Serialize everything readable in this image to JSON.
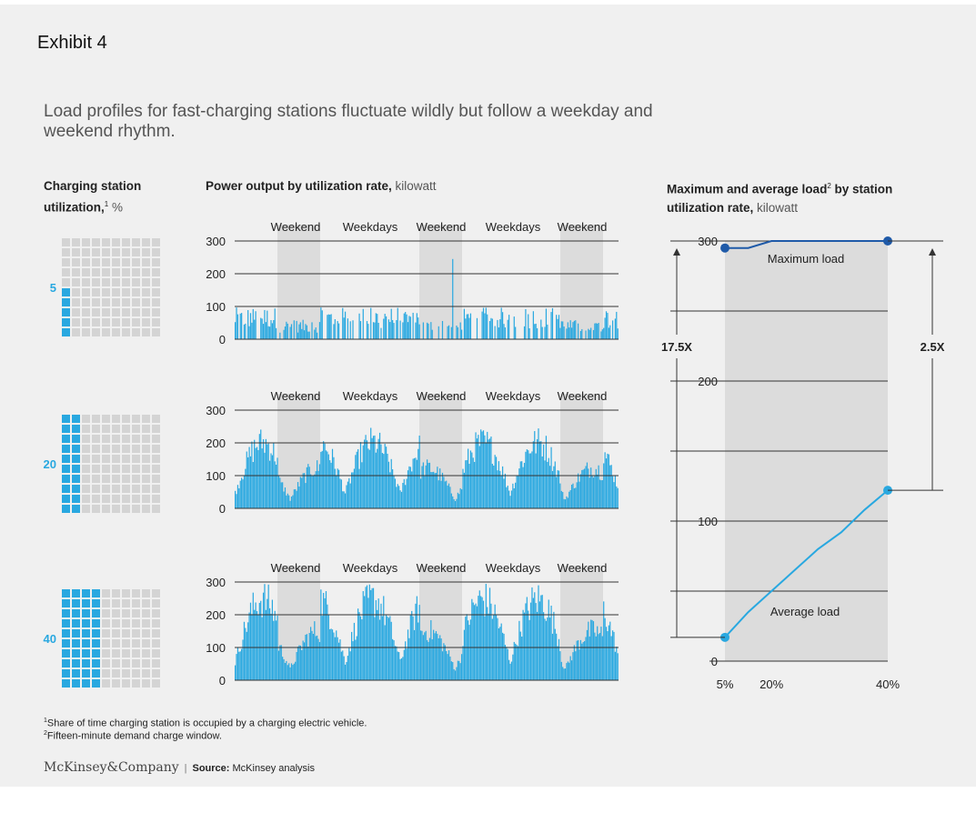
{
  "exhibit_label": "Exhibit 4",
  "title": "Load profiles for fast-charging stations fluctuate wildly but follow a weekday and weekend rhythm.",
  "left_header": {
    "main": "Charging station utilization,",
    "sup": "1",
    "unit": "%"
  },
  "middle_header": {
    "main": "Power output by utilization rate,",
    "unit": "kilowatt"
  },
  "right_header": {
    "line1_main": "Maximum and average load",
    "line1_sup": "2",
    "line1_rest": "by station",
    "line2_main": "utilization rate,",
    "line2_unit": "kilowatt"
  },
  "colors": {
    "accent": "#29a8e0",
    "dark_blue": "#1f5aa8",
    "waffle_empty": "#d4d4d4",
    "shade": "#dcdcdc"
  },
  "chart_data": [
    {
      "type": "waffle",
      "rows": [
        {
          "label": "5",
          "percent": 5
        },
        {
          "label": "20",
          "percent": 20
        },
        {
          "label": "40",
          "percent": 40
        }
      ],
      "grid": [
        10,
        10
      ]
    },
    {
      "type": "bar",
      "title": "Power output by utilization rate, kilowatt",
      "period_labels": [
        "Weekend",
        "Weekdays",
        "Weekend",
        "Weekdays",
        "Weekend"
      ],
      "yticks": [
        0,
        100,
        200,
        300
      ],
      "ylim": [
        0,
        300
      ],
      "panels": [
        {
          "utilization": "5",
          "typical_peak": 90,
          "max_peak": 245
        },
        {
          "utilization": "20",
          "typical_peak": 220,
          "max_peak": 290
        },
        {
          "utilization": "40",
          "typical_peak": 270,
          "max_peak": 295
        }
      ]
    },
    {
      "type": "line",
      "title": "Maximum and average load by station utilization rate, kilowatt",
      "x_tick_labels": [
        "5%",
        "20%",
        "40%"
      ],
      "x": [
        5,
        10,
        15,
        20,
        25,
        30,
        35,
        40
      ],
      "xlim": [
        5,
        40
      ],
      "ylim": [
        0,
        300
      ],
      "yticks": [
        0,
        100,
        200,
        300
      ],
      "series": [
        {
          "name": "Maximum load",
          "values": [
            295,
            295,
            300,
            300,
            300,
            300,
            300,
            300
          ]
        },
        {
          "name": "Average load",
          "values": [
            17,
            35,
            50,
            65,
            80,
            92,
            108,
            122
          ]
        }
      ],
      "annotations": [
        {
          "text": "17.5X"
        },
        {
          "text": "2.5X"
        }
      ]
    }
  ],
  "footnotes": [
    {
      "sup": "1",
      "text": "Share of time charging station is occupied by a charging electric vehicle."
    },
    {
      "sup": "2",
      "text": "Fifteen-minute demand charge window."
    }
  ],
  "source": {
    "brand": "McKinsey&Company",
    "label": "Source:",
    "text": "McKinsey analysis"
  }
}
